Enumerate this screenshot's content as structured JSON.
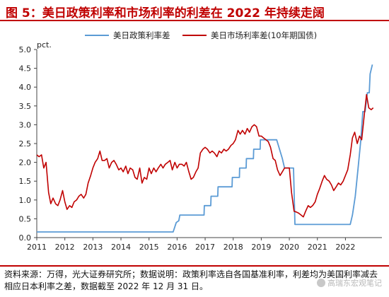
{
  "header": {
    "title": "图 5：美日政策利率和市场利率的利差在 2022 年持续走阔"
  },
  "footer": {
    "text": "资料来源：万得，光大证券研究所；数据说明：政策利率选自各国基准利率，利差均为美国利率减去相应日本利率之差，数据截至 2022 年 12 月 31 日。",
    "watermark": "高瑞东宏观笔记"
  },
  "colors": {
    "policy": "#5b9bd5",
    "market": "#c00000",
    "accent": "#c00000"
  },
  "chart_data": {
    "type": "line",
    "ylabel": "pct.",
    "ylim": [
      0,
      5
    ],
    "yticks": [
      "0.0",
      "0.5",
      "1.0",
      "1.5",
      "2.0",
      "2.5",
      "3.0",
      "3.5",
      "4.0",
      "4.5",
      "5.0"
    ],
    "xlim": [
      2011,
      2023.3
    ],
    "xticks": [
      "2011",
      "2012",
      "2013",
      "2014",
      "2015",
      "2016",
      "2017",
      "2018",
      "2019",
      "2020",
      "2021",
      "2022"
    ],
    "legend_position": "top",
    "series": [
      {
        "name": "美日政策利率差",
        "color": "#5b9bd5",
        "x": [
          2011.0,
          2015.86,
          2015.97,
          2016.06,
          2016.1,
          2016.96,
          2016.97,
          2017.2,
          2017.21,
          2017.45,
          2017.46,
          2017.96,
          2017.97,
          2018.22,
          2018.23,
          2018.46,
          2018.47,
          2018.72,
          2018.73,
          2018.96,
          2018.97,
          2019.55,
          2019.65,
          2019.75,
          2019.83,
          2020.15,
          2020.2,
          2022.17,
          2022.25,
          2022.35,
          2022.45,
          2022.55,
          2022.62,
          2022.7,
          2022.78,
          2022.85,
          2022.88,
          2022.96
        ],
        "values": [
          0.15,
          0.15,
          0.4,
          0.45,
          0.6,
          0.6,
          0.85,
          0.85,
          1.1,
          1.1,
          1.35,
          1.35,
          1.6,
          1.6,
          1.85,
          1.85,
          2.1,
          2.1,
          2.35,
          2.35,
          2.6,
          2.6,
          2.35,
          2.1,
          1.85,
          1.85,
          0.35,
          0.35,
          0.6,
          1.1,
          1.85,
          2.6,
          3.35,
          3.35,
          3.85,
          3.85,
          4.35,
          4.6
        ]
      },
      {
        "name": "美日市场利率差(10年期国债)",
        "color": "#c00000",
        "x": [
          2011.0,
          2011.08,
          2011.17,
          2011.25,
          2011.33,
          2011.42,
          2011.5,
          2011.58,
          2011.67,
          2011.75,
          2011.83,
          2011.92,
          2012.0,
          2012.08,
          2012.17,
          2012.25,
          2012.33,
          2012.42,
          2012.5,
          2012.58,
          2012.67,
          2012.75,
          2012.83,
          2012.92,
          2013.0,
          2013.08,
          2013.17,
          2013.25,
          2013.33,
          2013.42,
          2013.5,
          2013.58,
          2013.67,
          2013.75,
          2013.83,
          2013.92,
          2014.0,
          2014.08,
          2014.17,
          2014.25,
          2014.33,
          2014.42,
          2014.5,
          2014.58,
          2014.67,
          2014.75,
          2014.83,
          2014.92,
          2015.0,
          2015.08,
          2015.17,
          2015.25,
          2015.33,
          2015.42,
          2015.5,
          2015.58,
          2015.67,
          2015.75,
          2015.83,
          2015.92,
          2016.0,
          2016.08,
          2016.17,
          2016.25,
          2016.33,
          2016.42,
          2016.5,
          2016.58,
          2016.67,
          2016.75,
          2016.83,
          2016.92,
          2017.0,
          2017.08,
          2017.17,
          2017.25,
          2017.33,
          2017.42,
          2017.5,
          2017.58,
          2017.67,
          2017.75,
          2017.83,
          2017.92,
          2018.0,
          2018.08,
          2018.17,
          2018.25,
          2018.33,
          2018.42,
          2018.5,
          2018.58,
          2018.67,
          2018.75,
          2018.83,
          2018.92,
          2019.0,
          2019.08,
          2019.17,
          2019.25,
          2019.33,
          2019.42,
          2019.5,
          2019.58,
          2019.67,
          2019.75,
          2019.83,
          2019.92,
          2020.0,
          2020.08,
          2020.17,
          2020.25,
          2020.33,
          2020.42,
          2020.5,
          2020.58,
          2020.67,
          2020.75,
          2020.83,
          2020.92,
          2021.0,
          2021.08,
          2021.17,
          2021.25,
          2021.33,
          2021.42,
          2021.5,
          2021.58,
          2021.67,
          2021.75,
          2021.83,
          2021.92,
          2022.0,
          2022.08,
          2022.17,
          2022.25,
          2022.33,
          2022.42,
          2022.5,
          2022.58,
          2022.67,
          2022.75,
          2022.83,
          2022.92,
          2022.99
        ],
        "values": [
          2.2,
          2.15,
          2.2,
          1.85,
          2.0,
          1.2,
          0.9,
          1.05,
          0.9,
          0.85,
          1.0,
          1.25,
          0.95,
          0.75,
          0.85,
          0.8,
          0.95,
          1.0,
          1.1,
          1.15,
          1.05,
          1.15,
          1.45,
          1.65,
          1.85,
          2.0,
          2.1,
          2.3,
          2.05,
          2.05,
          2.1,
          1.85,
          2.0,
          2.05,
          1.95,
          1.8,
          1.85,
          1.75,
          1.9,
          1.7,
          1.85,
          1.8,
          1.6,
          1.55,
          1.85,
          1.45,
          1.6,
          1.55,
          1.85,
          1.7,
          1.85,
          1.75,
          1.85,
          1.95,
          1.85,
          1.95,
          2.0,
          2.05,
          1.8,
          2.0,
          1.85,
          1.95,
          1.95,
          1.9,
          2.0,
          1.75,
          1.55,
          1.6,
          1.75,
          1.85,
          2.25,
          2.35,
          2.4,
          2.35,
          2.25,
          2.3,
          2.25,
          2.15,
          2.3,
          2.25,
          2.35,
          2.3,
          2.35,
          2.45,
          2.5,
          2.6,
          2.85,
          2.75,
          2.85,
          2.75,
          2.9,
          2.8,
          2.95,
          3.0,
          2.95,
          2.7,
          2.7,
          2.65,
          2.6,
          2.55,
          2.4,
          2.1,
          2.05,
          1.8,
          1.65,
          1.75,
          1.85,
          1.85,
          1.85,
          1.2,
          0.7,
          0.68,
          0.65,
          0.6,
          0.55,
          0.7,
          0.85,
          0.8,
          0.85,
          0.95,
          1.15,
          1.3,
          1.5,
          1.65,
          1.55,
          1.5,
          1.4,
          1.25,
          1.35,
          1.45,
          1.4,
          1.5,
          1.65,
          1.8,
          2.2,
          2.65,
          2.8,
          2.5,
          2.7,
          2.6,
          3.25,
          3.8,
          3.45,
          3.4,
          3.45
        ]
      }
    ]
  }
}
